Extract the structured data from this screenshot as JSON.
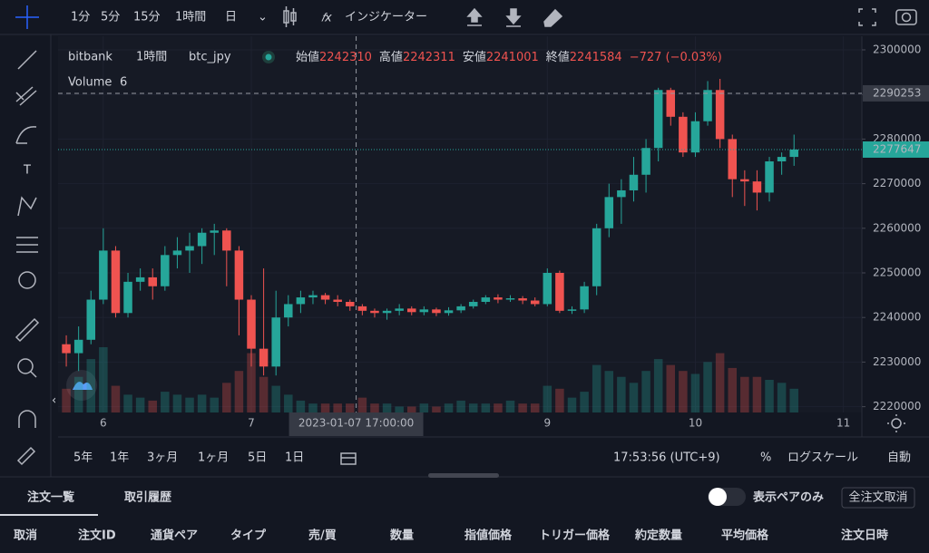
{
  "toolbar": {
    "intervals": [
      "1分",
      "5分",
      "15分",
      "1時間",
      "日"
    ],
    "active": 3,
    "indicators": "インジケーター"
  },
  "chart_data": {
    "type": "candlestick",
    "exchange": "bitbank",
    "interval": "1時間",
    "symbol": "btc_jpy",
    "ohlc_legend": [
      {
        "label": "始値",
        "value": 2242310
      },
      {
        "label": "高値",
        "value": 2242311
      },
      {
        "label": "安値",
        "value": 2241001
      },
      {
        "label": "終値",
        "value": 2241584
      }
    ],
    "change": "−727 (−0.03%)",
    "volume_label": "Volume",
    "volume_value": 6,
    "up_color": "#26a69a",
    "down_color": "#ef5350",
    "x": [
      "2023-01-05 18:00",
      "2023-01-05 20:00",
      "2023-01-05 22:00",
      "2023-01-06 00:00",
      "2023-01-06 02:00",
      "2023-01-06 04:00",
      "2023-01-06 06:00",
      "2023-01-06 08:00",
      "2023-01-06 10:00",
      "2023-01-06 12:00",
      "2023-01-06 14:00",
      "2023-01-06 16:00",
      "2023-01-06 18:00",
      "2023-01-06 20:00",
      "2023-01-06 22:00",
      "2023-01-07 00:00",
      "2023-01-07 02:00",
      "2023-01-07 04:00",
      "2023-01-07 06:00",
      "2023-01-07 08:00",
      "2023-01-07 10:00",
      "2023-01-07 12:00",
      "2023-01-07 14:00",
      "2023-01-07 16:00",
      "2023-01-07 18:00",
      "2023-01-07 20:00",
      "2023-01-07 22:00",
      "2023-01-08 00:00",
      "2023-01-08 02:00",
      "2023-01-08 04:00",
      "2023-01-08 06:00",
      "2023-01-08 08:00",
      "2023-01-08 10:00",
      "2023-01-08 12:00",
      "2023-01-08 14:00",
      "2023-01-08 16:00",
      "2023-01-08 18:00",
      "2023-01-08 20:00",
      "2023-01-08 22:00",
      "2023-01-09 00:00",
      "2023-01-09 02:00",
      "2023-01-09 04:00",
      "2023-01-09 06:00",
      "2023-01-09 08:00",
      "2023-01-09 10:00",
      "2023-01-09 12:00",
      "2023-01-09 14:00",
      "2023-01-09 16:00",
      "2023-01-09 18:00",
      "2023-01-09 20:00",
      "2023-01-09 22:00",
      "2023-01-10 00:00",
      "2023-01-10 02:00",
      "2023-01-10 04:00",
      "2023-01-10 06:00",
      "2023-01-10 08:00",
      "2023-01-10 10:00",
      "2023-01-10 12:00",
      "2023-01-10 14:00",
      "2023-01-10 16:00"
    ],
    "open": [
      2234000,
      2232000,
      2235000,
      2244000,
      2255000,
      2241000,
      2248000,
      2249000,
      2247000,
      2254000,
      2255000,
      2256000,
      2259000,
      2259500,
      2255000,
      2244000,
      2233000,
      2229000,
      2240000,
      2243000,
      2244500,
      2245000,
      2244000,
      2243500,
      2242500,
      2241500,
      2241000,
      2241500,
      2242000,
      2241200,
      2241800,
      2241000,
      2241600,
      2242500,
      2243500,
      2244500,
      2244000,
      2244300,
      2243800,
      2243000,
      2250000,
      2241500,
      2241800,
      2247000,
      2260000,
      2267000,
      2268500,
      2272000,
      2278000,
      2291000,
      2285000,
      2277000,
      2284000,
      2291000,
      2280000,
      2271000,
      2270500,
      2268000,
      2275000,
      2276000
    ],
    "high": [
      2236000,
      2238000,
      2246000,
      2260000,
      2256000,
      2250000,
      2251000,
      2251000,
      2256000,
      2258000,
      2259000,
      2260000,
      2261000,
      2260000,
      2256000,
      2245000,
      2251000,
      2246000,
      2245000,
      2246000,
      2246000,
      2245500,
      2245000,
      2244000,
      2243000,
      2242000,
      2242000,
      2243000,
      2242500,
      2242500,
      2242200,
      2242300,
      2243000,
      2244000,
      2245000,
      2245200,
      2245000,
      2244800,
      2244500,
      2251000,
      2250500,
      2242500,
      2248000,
      2261000,
      2270000,
      2271000,
      2276000,
      2280000,
      2291500,
      2291500,
      2286000,
      2286000,
      2293000,
      2293500,
      2281000,
      2273000,
      2273000,
      2276000,
      2277000,
      2281000
    ],
    "low": [
      2229000,
      2228000,
      2234000,
      2243000,
      2240000,
      2240000,
      2246000,
      2244000,
      2246000,
      2251000,
      2250000,
      2252000,
      2254000,
      2247000,
      2236000,
      2229000,
      2227000,
      2227000,
      2238000,
      2241000,
      2243000,
      2243000,
      2242500,
      2241500,
      2240500,
      2240000,
      2239500,
      2240500,
      2240500,
      2240500,
      2240300,
      2240400,
      2241000,
      2242000,
      2243000,
      2243200,
      2243500,
      2243000,
      2242500,
      2242500,
      2241000,
      2240800,
      2241000,
      2245000,
      2258000,
      2261000,
      2266000,
      2268000,
      2275000,
      2283000,
      2276000,
      2276000,
      2283000,
      2278000,
      2267000,
      2265000,
      2264000,
      2266000,
      2272000,
      2274000
    ],
    "close": [
      2232000,
      2235000,
      2244000,
      2255000,
      2241000,
      2248000,
      2249000,
      2247000,
      2254000,
      2255000,
      2256000,
      2259000,
      2259500,
      2255000,
      2244000,
      2233000,
      2229000,
      2240000,
      2243000,
      2244500,
      2245000,
      2244000,
      2243500,
      2242500,
      2241500,
      2241000,
      2241500,
      2242000,
      2241200,
      2241800,
      2241000,
      2241600,
      2242500,
      2243500,
      2244500,
      2244000,
      2244300,
      2243800,
      2243000,
      2250000,
      2241500,
      2241800,
      2247000,
      2260000,
      2267000,
      2268500,
      2272000,
      2278000,
      2291000,
      2285000,
      2277000,
      2284000,
      2291000,
      2280000,
      2271000,
      2270500,
      2268000,
      2275000,
      2276000,
      2277647
    ],
    "volume": [
      8,
      12,
      18,
      22,
      9,
      6,
      5,
      4,
      7,
      6,
      5,
      6,
      5,
      10,
      14,
      20,
      12,
      9,
      6,
      4,
      3,
      3,
      3,
      3,
      5,
      3,
      3,
      2,
      2,
      3,
      2,
      3,
      4,
      3,
      3,
      3,
      4,
      3,
      3,
      9,
      8,
      5,
      7,
      16,
      14,
      12,
      10,
      14,
      18,
      16,
      14,
      13,
      17,
      20,
      15,
      12,
      12,
      11,
      10,
      8
    ],
    "xlim": [
      "2023-01-05 16:40",
      "2023-01-11 03:00"
    ],
    "xticks": [
      {
        "value": "2023-01-06 00:00",
        "label": "6"
      },
      {
        "value": "2023-01-07 00:00",
        "label": "7"
      },
      {
        "value": "2023-01-09 00:00",
        "label": "9"
      },
      {
        "value": "2023-01-10 00:00",
        "label": "10"
      },
      {
        "value": "2023-01-11 00:00",
        "label": "11"
      }
    ],
    "ylim": [
      2218700,
      2303050
    ],
    "yticks": [
      2220000,
      2230000,
      2240000,
      2250000,
      2260000,
      2270000,
      2280000,
      2290000,
      2300000
    ],
    "last_price": 2277647,
    "crosshair": {
      "x": "2023-01-07 17:00",
      "x_label": "2023-01-07   17:00:00",
      "y": 2290253
    }
  },
  "bottom_bar": {
    "ranges": [
      "5年",
      "1年",
      "3ヶ月",
      "1ヶ月",
      "5日",
      "1日"
    ],
    "clock": "17:53:56 (UTC+9)",
    "percent": "%",
    "log_scale": "ログスケール",
    "auto": "自動"
  },
  "orders_panel": {
    "tabs": [
      "注文一覧",
      "取引履歴"
    ],
    "toggle_label": "表示ペアのみ",
    "cancel_all": "全注文取消",
    "columns": [
      "取消",
      "注文ID",
      "通貨ペア",
      "タイプ",
      "売/買",
      "数量",
      "指値価格",
      "トリガー価格",
      "約定数量",
      "平均価格",
      "注文日時"
    ]
  }
}
